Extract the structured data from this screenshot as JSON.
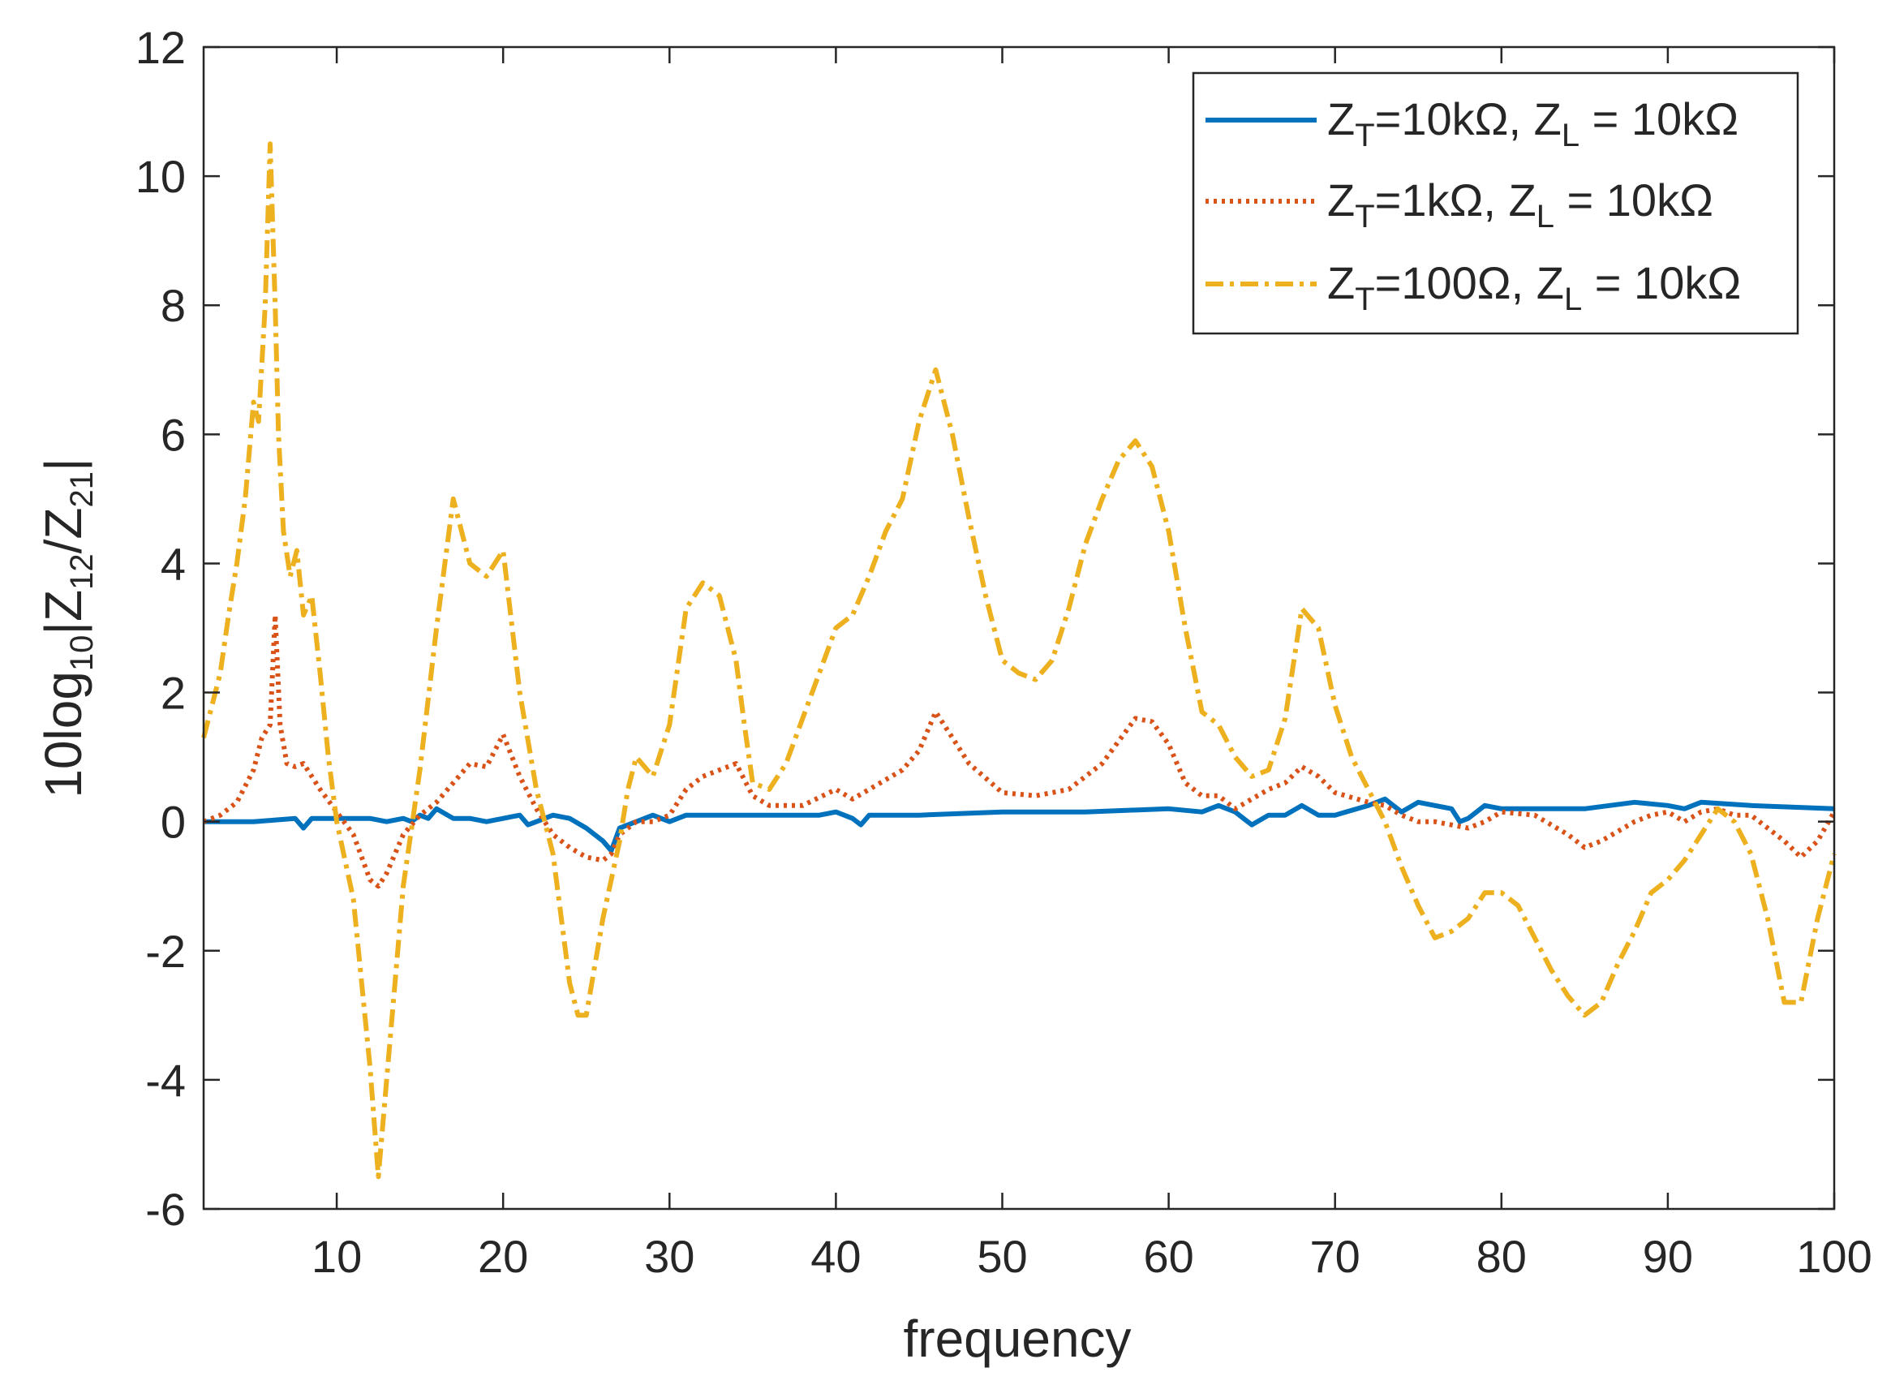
{
  "chart_data": {
    "type": "line",
    "title": "",
    "xlabel": "frequency",
    "ylabel": {
      "base": "10log",
      "sub_log": "10",
      "bar_open": "|Z",
      "sub_num": "12",
      "slash": "/Z",
      "sub_den": "21",
      "bar_close": "|"
    },
    "xlim": [
      2,
      100
    ],
    "ylim": [
      -6,
      12
    ],
    "xticks": [
      10,
      20,
      30,
      40,
      50,
      60,
      70,
      80,
      90,
      100
    ],
    "yticks": [
      -6,
      -4,
      -2,
      0,
      2,
      4,
      6,
      8,
      10,
      12
    ],
    "grid": false,
    "legend_position": "top-right",
    "series": [
      {
        "name": "Z_T=10kΩ, Z_L = 10kΩ",
        "legend": {
          "z1": "Z",
          "s1": "T",
          "mid": "=10kΩ, Z",
          "s2": "L",
          "tail": " = 10kΩ"
        },
        "color": "#0072BD",
        "style": "solid",
        "x": [
          2,
          5,
          7.5,
          8,
          8.5,
          9,
          10,
          12,
          13,
          14,
          14.5,
          15,
          15.5,
          16,
          17,
          18,
          19,
          20,
          21,
          21.5,
          22,
          23,
          24,
          25,
          26,
          26.5,
          27,
          28,
          29,
          30,
          31,
          35,
          39,
          40,
          41,
          41.5,
          42,
          45,
          50,
          55,
          60,
          62,
          63,
          64,
          64.5,
          65,
          66,
          67,
          68,
          69,
          70,
          72,
          73,
          74,
          75,
          76,
          77,
          77.5,
          78,
          79,
          80,
          85,
          88,
          90,
          91,
          92,
          95,
          100
        ],
        "y": [
          0,
          0,
          0.05,
          -0.1,
          0.05,
          0.05,
          0.05,
          0.05,
          0.0,
          0.05,
          0.0,
          0.1,
          0.05,
          0.2,
          0.05,
          0.05,
          0.0,
          0.05,
          0.1,
          -0.05,
          0.0,
          0.1,
          0.05,
          -0.1,
          -0.3,
          -0.45,
          -0.1,
          0.0,
          0.1,
          0.0,
          0.1,
          0.1,
          0.1,
          0.15,
          0.05,
          -0.05,
          0.1,
          0.1,
          0.15,
          0.15,
          0.2,
          0.15,
          0.25,
          0.15,
          0.05,
          -0.05,
          0.1,
          0.1,
          0.25,
          0.1,
          0.1,
          0.25,
          0.35,
          0.15,
          0.3,
          0.25,
          0.2,
          0.0,
          0.05,
          0.25,
          0.2,
          0.2,
          0.3,
          0.25,
          0.2,
          0.3,
          0.25,
          0.2
        ]
      },
      {
        "name": "Z_T=1kΩ, Z_L = 10kΩ",
        "legend": {
          "z1": "Z",
          "s1": "T",
          "mid": "=1kΩ, Z",
          "s2": "L",
          "tail": " = 10kΩ"
        },
        "color": "#D95319",
        "style": "dotted",
        "x": [
          2,
          3,
          4,
          5,
          5.5,
          6,
          6.3,
          6.6,
          7,
          7.5,
          8,
          9,
          10,
          11,
          12,
          12.5,
          13,
          14,
          15,
          16,
          17,
          18,
          19,
          20,
          21,
          22,
          23,
          24,
          25,
          26,
          26.5,
          27,
          28,
          29,
          30,
          31,
          32,
          33,
          34,
          35,
          36,
          38,
          40,
          41,
          42,
          44,
          45,
          46,
          47,
          48,
          50,
          52,
          54,
          56,
          58,
          59,
          60,
          61,
          62,
          63,
          64,
          65,
          66,
          67,
          68,
          69,
          70,
          72,
          73,
          74,
          75,
          76,
          78,
          79,
          80,
          82,
          84,
          85,
          86,
          88,
          89,
          90,
          91,
          92,
          93,
          94,
          95,
          96,
          97,
          98,
          99,
          100
        ],
        "y": [
          0,
          0.1,
          0.3,
          0.8,
          1.3,
          1.5,
          3.2,
          1.5,
          0.9,
          0.85,
          0.9,
          0.5,
          0.15,
          -0.2,
          -0.9,
          -1.0,
          -0.8,
          -0.2,
          0.1,
          0.3,
          0.6,
          0.9,
          0.85,
          1.35,
          0.7,
          0.2,
          -0.2,
          -0.4,
          -0.55,
          -0.6,
          -0.5,
          -0.2,
          0.0,
          0.0,
          0.1,
          0.5,
          0.7,
          0.8,
          0.9,
          0.4,
          0.25,
          0.25,
          0.5,
          0.35,
          0.5,
          0.8,
          1.1,
          1.7,
          1.3,
          0.9,
          0.45,
          0.4,
          0.5,
          0.9,
          1.6,
          1.55,
          1.2,
          0.6,
          0.4,
          0.4,
          0.2,
          0.35,
          0.5,
          0.6,
          0.85,
          0.7,
          0.45,
          0.3,
          0.25,
          0.1,
          0.0,
          0.0,
          -0.1,
          0.0,
          0.15,
          0.1,
          -0.2,
          -0.4,
          -0.3,
          0.0,
          0.1,
          0.15,
          0.0,
          0.15,
          0.2,
          0.1,
          0.1,
          -0.1,
          -0.3,
          -0.55,
          -0.3,
          0.15
        ]
      },
      {
        "name": "Z_T=100Ω, Z_L = 10kΩ",
        "legend": {
          "z1": "Z",
          "s1": "T",
          "mid": "=100Ω, Z",
          "s2": "L",
          "tail": " = 10kΩ"
        },
        "color": "#EDB120",
        "style": "dashdot",
        "x": [
          2,
          2.5,
          3,
          3.5,
          4,
          4.5,
          5,
          5.3,
          5.7,
          6,
          6.3,
          6.5,
          6.8,
          7.2,
          7.6,
          8,
          8.5,
          9,
          9.5,
          10,
          11,
          12,
          12.5,
          13,
          13.5,
          14,
          15,
          16,
          17,
          18,
          19,
          20,
          21,
          22,
          23,
          24,
          24.5,
          25,
          26,
          27,
          27.5,
          28,
          29,
          30,
          31,
          32,
          33,
          34,
          34.5,
          35,
          36,
          37,
          38,
          39,
          40,
          41,
          42,
          43,
          44,
          45,
          46,
          47,
          48,
          49,
          50,
          51,
          52,
          53,
          54,
          55,
          56,
          57,
          58,
          59,
          60,
          61,
          62,
          63,
          64,
          65,
          66,
          67,
          68,
          69,
          70,
          71,
          72,
          73,
          74,
          75,
          76,
          77,
          78,
          79,
          80,
          81,
          82,
          83,
          84,
          85,
          86,
          87,
          88,
          89,
          90,
          91,
          92,
          93,
          94,
          95,
          96,
          97,
          98,
          99,
          100
        ],
        "y": [
          1.3,
          1.8,
          2.3,
          3.2,
          4.0,
          5.0,
          6.5,
          6.2,
          8.0,
          10.5,
          8.0,
          6.0,
          4.5,
          3.8,
          4.2,
          3.2,
          3.5,
          2.3,
          1.0,
          0.0,
          -1.2,
          -3.8,
          -5.5,
          -4.0,
          -2.5,
          -1.0,
          0.8,
          3.0,
          5.0,
          4.0,
          3.8,
          4.2,
          2.0,
          0.5,
          -0.5,
          -2.5,
          -3.0,
          -3.0,
          -1.5,
          -0.3,
          0.5,
          1.0,
          0.7,
          1.5,
          3.3,
          3.7,
          3.5,
          2.5,
          1.5,
          0.6,
          0.5,
          0.9,
          1.6,
          2.3,
          3.0,
          3.2,
          3.8,
          4.5,
          5.0,
          6.2,
          7.0,
          6.0,
          4.7,
          3.5,
          2.5,
          2.3,
          2.2,
          2.5,
          3.3,
          4.3,
          5.0,
          5.6,
          5.9,
          5.5,
          4.5,
          3.0,
          1.7,
          1.5,
          1.0,
          0.7,
          0.8,
          1.6,
          3.3,
          3.0,
          1.8,
          1.0,
          0.5,
          0.0,
          -0.7,
          -1.3,
          -1.8,
          -1.7,
          -1.5,
          -1.1,
          -1.1,
          -1.3,
          -1.8,
          -2.3,
          -2.7,
          -3.0,
          -2.8,
          -2.2,
          -1.7,
          -1.1,
          -0.9,
          -0.6,
          -0.2,
          0.2,
          0.0,
          -0.5,
          -1.5,
          -2.8,
          -2.8,
          -1.5,
          -0.5
        ]
      }
    ]
  }
}
